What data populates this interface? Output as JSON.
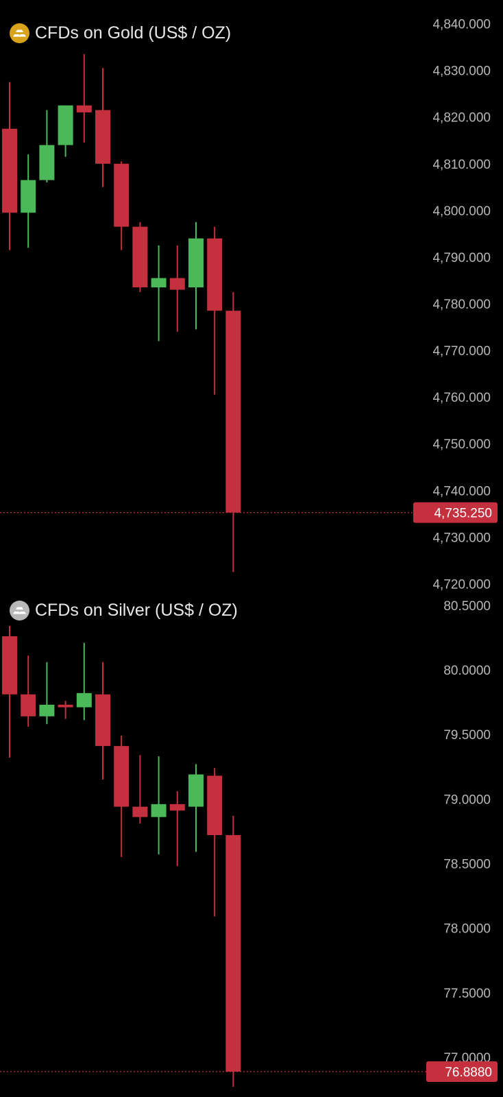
{
  "colors": {
    "up": "#4bb85a",
    "down": "#c4303d",
    "background": "#000000",
    "tick_text": "#b8b8b8",
    "last_price": "#c4303d"
  },
  "chart_data": [
    {
      "type": "candlestick",
      "title": "CFDs on Gold (US$ / OZ)",
      "icon": "gold-bars-icon",
      "icon_color": "#d9a21b",
      "yticks": [
        "4,840.000",
        "4,830.000",
        "4,820.000",
        "4,810.000",
        "4,800.000",
        "4,790.000",
        "4,780.000",
        "4,770.000",
        "4,760.000",
        "4,750.000",
        "4,740.000",
        "4,730.000",
        "4,720.000"
      ],
      "ylim": [
        4718,
        4842
      ],
      "last_price": "4,735.250",
      "last_value": 4735.25,
      "candles": [
        {
          "o": 4817.5,
          "h": 4827.5,
          "l": 4791.5,
          "c": 4799.5
        },
        {
          "o": 4799.5,
          "h": 4812.0,
          "l": 4792.0,
          "c": 4806.5
        },
        {
          "o": 4806.5,
          "h": 4821.5,
          "l": 4806.0,
          "c": 4814.0
        },
        {
          "o": 4814.0,
          "h": 4822.5,
          "l": 4811.5,
          "c": 4822.5
        },
        {
          "o": 4822.5,
          "h": 4833.5,
          "l": 4814.5,
          "c": 4821.0
        },
        {
          "o": 4821.5,
          "h": 4830.5,
          "l": 4805.0,
          "c": 4810.0
        },
        {
          "o": 4810.0,
          "h": 4810.5,
          "l": 4791.5,
          "c": 4796.5
        },
        {
          "o": 4796.5,
          "h": 4797.5,
          "l": 4782.5,
          "c": 4783.5
        },
        {
          "o": 4783.5,
          "h": 4792.5,
          "l": 4772.0,
          "c": 4785.5
        },
        {
          "o": 4785.5,
          "h": 4792.5,
          "l": 4774.0,
          "c": 4783.0
        },
        {
          "o": 4783.5,
          "h": 4797.5,
          "l": 4774.5,
          "c": 4794.0
        },
        {
          "o": 4794.0,
          "h": 4796.5,
          "l": 4760.5,
          "c": 4778.5
        },
        {
          "o": 4778.5,
          "h": 4782.5,
          "l": 4722.5,
          "c": 4735.25
        }
      ]
    },
    {
      "type": "candlestick",
      "title": "CFDs on Silver (US$ / OZ)",
      "icon": "silver-bars-icon",
      "icon_color": "#b8b8b8",
      "yticks": [
        "80.5000",
        "80.0000",
        "79.5000",
        "79.0000",
        "78.5000",
        "78.0000",
        "77.5000",
        "77.0000"
      ],
      "ylim": [
        76.75,
        80.6
      ],
      "last_price": "76.8880",
      "last_value": 76.888,
      "candles": [
        {
          "o": 80.26,
          "h": 80.34,
          "l": 79.32,
          "c": 79.81
        },
        {
          "o": 79.81,
          "h": 80.11,
          "l": 79.56,
          "c": 79.64
        },
        {
          "o": 79.64,
          "h": 80.06,
          "l": 79.58,
          "c": 79.73
        },
        {
          "o": 79.73,
          "h": 79.76,
          "l": 79.62,
          "c": 79.71
        },
        {
          "o": 79.71,
          "h": 80.21,
          "l": 79.61,
          "c": 79.82
        },
        {
          "o": 79.81,
          "h": 80.06,
          "l": 79.15,
          "c": 79.41
        },
        {
          "o": 79.41,
          "h": 79.49,
          "l": 78.55,
          "c": 78.94
        },
        {
          "o": 78.94,
          "h": 79.34,
          "l": 78.81,
          "c": 78.86
        },
        {
          "o": 78.86,
          "h": 79.33,
          "l": 78.57,
          "c": 78.96
        },
        {
          "o": 78.96,
          "h": 79.06,
          "l": 78.48,
          "c": 78.91
        },
        {
          "o": 78.94,
          "h": 79.27,
          "l": 78.59,
          "c": 79.19
        },
        {
          "o": 79.18,
          "h": 79.24,
          "l": 78.09,
          "c": 78.72
        },
        {
          "o": 78.72,
          "h": 78.87,
          "l": 76.77,
          "c": 76.888
        }
      ]
    }
  ]
}
